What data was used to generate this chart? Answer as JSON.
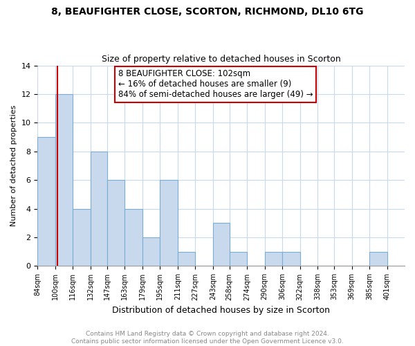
{
  "title": "8, BEAUFIGHTER CLOSE, SCORTON, RICHMOND, DL10 6TG",
  "subtitle": "Size of property relative to detached houses in Scorton",
  "xlabel": "Distribution of detached houses by size in Scorton",
  "ylabel": "Number of detached properties",
  "bar_left_edges": [
    84,
    100,
    116,
    132,
    147,
    163,
    179,
    195,
    211,
    227,
    243,
    258,
    274,
    290,
    306,
    322,
    338,
    353,
    369,
    385
  ],
  "bar_heights": [
    9,
    12,
    4,
    8,
    6,
    4,
    2,
    6,
    1,
    0,
    3,
    1,
    0,
    1,
    1,
    0,
    0,
    0,
    0,
    1
  ],
  "bar_widths": [
    16,
    16,
    16,
    15,
    16,
    16,
    16,
    16,
    16,
    16,
    15,
    16,
    16,
    16,
    16,
    16,
    15,
    16,
    16,
    16
  ],
  "tick_labels": [
    "84sqm",
    "100sqm",
    "116sqm",
    "132sqm",
    "147sqm",
    "163sqm",
    "179sqm",
    "195sqm",
    "211sqm",
    "227sqm",
    "243sqm",
    "258sqm",
    "274sqm",
    "290sqm",
    "306sqm",
    "322sqm",
    "338sqm",
    "353sqm",
    "369sqm",
    "385sqm",
    "401sqm"
  ],
  "tick_positions": [
    84,
    100,
    116,
    132,
    147,
    163,
    179,
    195,
    211,
    227,
    243,
    258,
    274,
    290,
    306,
    322,
    338,
    353,
    369,
    385,
    401
  ],
  "bar_color": "#c8d9ee",
  "bar_edge_color": "#7aadd4",
  "reference_line_x": 102,
  "reference_line_color": "#cc0000",
  "annotation_line1": "8 BEAUFIGHTER CLOSE: 102sqm",
  "annotation_line2": "← 16% of detached houses are smaller (9)",
  "annotation_line3": "84% of semi-detached houses are larger (49) →",
  "annotation_box_edge_color": "#cc0000",
  "xlim_left": 84,
  "xlim_right": 417,
  "ylim": [
    0,
    14
  ],
  "yticks": [
    0,
    2,
    4,
    6,
    8,
    10,
    12,
    14
  ],
  "grid_color": "#c8d9ee",
  "footer_text": "Contains HM Land Registry data © Crown copyright and database right 2024.\nContains public sector information licensed under the Open Government Licence v3.0.",
  "title_fontsize": 10,
  "subtitle_fontsize": 9,
  "xlabel_fontsize": 9,
  "ylabel_fontsize": 8,
  "annotation_fontsize": 8.5,
  "footer_fontsize": 6.5
}
